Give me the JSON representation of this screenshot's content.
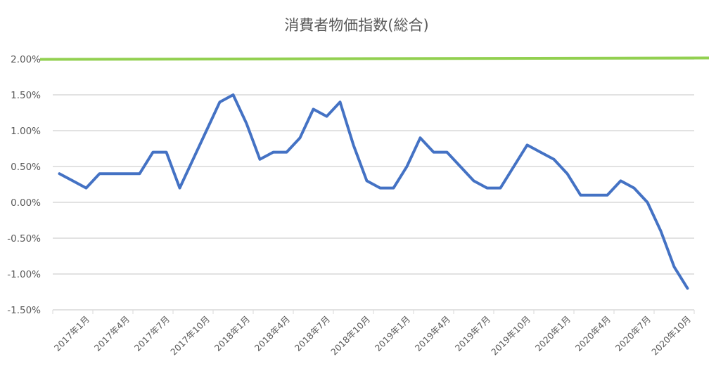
{
  "chart_data": {
    "type": "line",
    "title": "消費者物価指数(総合)",
    "xlabel": "",
    "ylabel": "",
    "ylim": [
      -1.5,
      2.0
    ],
    "y_ticks": [
      "-1.50%",
      "-1.00%",
      "-0.50%",
      "0.00%",
      "0.50%",
      "1.00%",
      "1.50%",
      "2.00%"
    ],
    "y_tick_values": [
      -1.5,
      -1.0,
      -0.5,
      0.0,
      0.5,
      1.0,
      1.5,
      2.0
    ],
    "x_tick_labels": [
      "2017年1月",
      "2017年4月",
      "2017年7月",
      "2017年10月",
      "2018年1月",
      "2018年4月",
      "2018年7月",
      "2018年10月",
      "2019年1月",
      "2019年4月",
      "2019年7月",
      "2019年10月",
      "2020年1月",
      "2020年4月",
      "2020年7月",
      "2020年10月"
    ],
    "x": [
      "2017-01",
      "2017-02",
      "2017-03",
      "2017-04",
      "2017-05",
      "2017-06",
      "2017-07",
      "2017-08",
      "2017-09",
      "2017-10",
      "2017-11",
      "2017-12",
      "2018-01",
      "2018-02",
      "2018-03",
      "2018-04",
      "2018-05",
      "2018-06",
      "2018-07",
      "2018-08",
      "2018-09",
      "2018-10",
      "2018-11",
      "2018-12",
      "2019-01",
      "2019-02",
      "2019-03",
      "2019-04",
      "2019-05",
      "2019-06",
      "2019-07",
      "2019-08",
      "2019-09",
      "2019-10",
      "2019-11",
      "2019-12",
      "2020-01",
      "2020-02",
      "2020-03",
      "2020-04",
      "2020-05",
      "2020-06",
      "2020-07",
      "2020-08",
      "2020-09",
      "2020-10",
      "2020-11",
      "2020-12"
    ],
    "series": [
      {
        "values": [
          0.4,
          0.3,
          0.2,
          0.4,
          0.4,
          0.4,
          0.4,
          0.7,
          0.7,
          0.2,
          0.6,
          1.0,
          1.4,
          1.5,
          1.1,
          0.6,
          0.7,
          0.7,
          0.9,
          1.3,
          1.2,
          1.4,
          0.8,
          0.3,
          0.2,
          0.2,
          0.5,
          0.9,
          0.7,
          0.7,
          0.5,
          0.3,
          0.2,
          0.2,
          0.5,
          0.8,
          0.7,
          0.6,
          0.4,
          0.1,
          0.1,
          0.1,
          0.3,
          0.2,
          0.0,
          -0.4,
          -0.9,
          -1.2
        ],
        "color": "#4472C4"
      },
      {
        "values_constant": 2.0,
        "color": "#92D050"
      }
    ],
    "grid": true,
    "legend": "none"
  }
}
